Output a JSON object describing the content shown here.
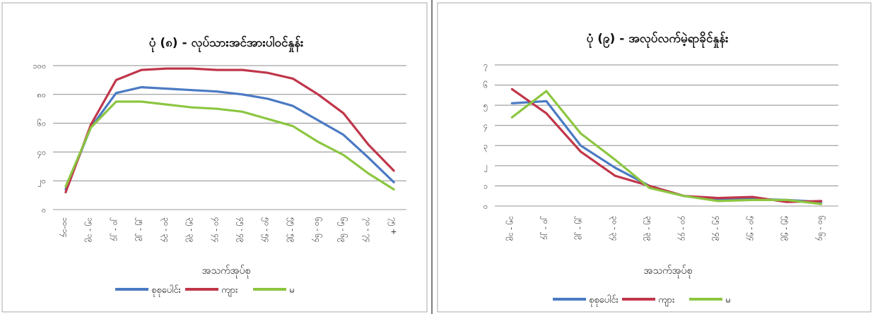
{
  "charts": [
    {
      "title": "ပုံ (၈) - လုပ်သားအင်အားပါဝင်နှုန်း",
      "xlabel": "အသက်အုပ်စု",
      "ylabel": "",
      "y_tick_labels": [
        "၀",
        "၂၀",
        "၄၀",
        "၆၀",
        "၈၀",
        "၁၀၀"
      ],
      "legend": [
        "စုစုပေါင်း",
        "ကျား",
        "မ"
      ]
    },
    {
      "title": "ပုံ (၉) - အလုပ်လက်မဲ့ရာခိုင်နှုန်း",
      "xlabel": "အသက်အုပ်စု",
      "ylabel": "",
      "y_tick_labels": [
        "၀",
        "၁",
        "၂",
        "၃",
        "၄",
        "၅",
        "၆",
        "၇"
      ],
      "legend": [
        "စုစုပေါင်း",
        "ကျား",
        "မ"
      ]
    }
  ],
  "chart_data": [
    {
      "type": "line",
      "title": "ပုံ (၈) - လုပ်သားအင်အားပါဝင်နှုန်း",
      "xlabel": "အသက်အုပ်စု",
      "ylabel": "",
      "ylim": [
        0,
        100
      ],
      "yticks": [
        0,
        20,
        40,
        60,
        80,
        100
      ],
      "grid": true,
      "legend_position": "bottom",
      "categories": [
        "၁၀-၁၄",
        "၁၅ - ၁၉",
        "၂၀ - ၂၄",
        "၂၅ - ၂၉",
        "၃၀ - ၃၄",
        "၃၅ - ၃၉",
        "၄၀ - ၄၄",
        "၄၅ - ၄၉",
        "၅၀ - ၅၄",
        "၅၅ - ၅၉",
        "၆၀ - ၆၄",
        "၆၅ - ၆၉",
        "၇၀ - ၇၄",
        "၇၅ +"
      ],
      "series": [
        {
          "name": "စုစုပေါင်း",
          "color": "#4a7ac3",
          "values": [
            14,
            57,
            81,
            85,
            84,
            83,
            82,
            80,
            77,
            72,
            62,
            52,
            36,
            19
          ]
        },
        {
          "name": "ကျား",
          "color": "#c0364a",
          "values": [
            12,
            59,
            90,
            97,
            98,
            98,
            97,
            97,
            95,
            91,
            80,
            67,
            45,
            27
          ]
        },
        {
          "name": "မ",
          "color": "#8cc641",
          "values": [
            16,
            57,
            75,
            75,
            73,
            71,
            70,
            68,
            63,
            58,
            47,
            38,
            25,
            14
          ]
        }
      ]
    },
    {
      "type": "line",
      "title": "ပုံ (၉) - အလုပ်လက်မဲ့ရာခိုင်နှုန်း",
      "xlabel": "အသက်အုပ်စု",
      "ylabel": "",
      "ylim": [
        0,
        7
      ],
      "yticks": [
        0,
        1,
        2,
        3,
        4,
        5,
        6,
        7
      ],
      "grid": true,
      "legend_position": "bottom",
      "categories": [
        "၁၅ - ၁၉",
        "၂၀ - ၂၄",
        "၂၅ - ၂၉",
        "၃၀ - ၃၄",
        "၃၅ - ၃၉",
        "၄၀ - ၄၄",
        "၄၅ - ၄၉",
        "၅၀ - ၅၄",
        "၅၅ - ၅၉",
        "၆၀ - ၆၄"
      ],
      "series": [
        {
          "name": "စုစုပေါင်း",
          "color": "#4a7ac3",
          "values": [
            5.1,
            5.2,
            3.0,
            1.9,
            1.0,
            0.5,
            0.3,
            0.35,
            0.3,
            0.2
          ]
        },
        {
          "name": "ကျား",
          "color": "#c0364a",
          "values": [
            5.8,
            4.6,
            2.7,
            1.5,
            1.0,
            0.5,
            0.4,
            0.45,
            0.2,
            0.25
          ]
        },
        {
          "name": "မ",
          "color": "#8cc641",
          "values": [
            4.4,
            5.7,
            3.6,
            2.3,
            0.9,
            0.5,
            0.25,
            0.3,
            0.3,
            0.1
          ]
        }
      ]
    }
  ]
}
